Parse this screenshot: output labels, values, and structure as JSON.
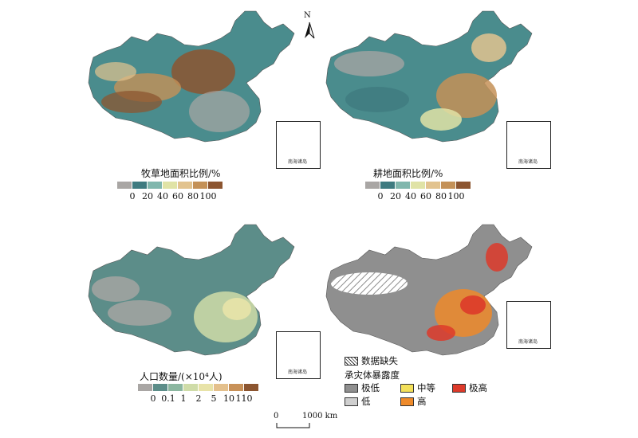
{
  "north_arrow": {
    "label": "N"
  },
  "inset": {
    "label": "南海诸岛"
  },
  "panels": [
    {
      "key": "grassland",
      "title": "牧草地面积比例/%",
      "ticks": [
        "0",
        "20",
        "40",
        "60",
        "80",
        "100"
      ],
      "colors": [
        "#a9a6a4",
        "#3e7b80",
        "#80b7ad",
        "#e0e3a6",
        "#e2c38f",
        "#c49157",
        "#8c5530"
      ]
    },
    {
      "key": "cropland",
      "title": "耕地面积比例/%",
      "ticks": [
        "0",
        "20",
        "40",
        "60",
        "80",
        "100"
      ],
      "colors": [
        "#a9a6a4",
        "#3e7b80",
        "#80b7ad",
        "#e0e3a6",
        "#e2c38f",
        "#c49157",
        "#8c5530"
      ]
    },
    {
      "key": "population",
      "title": "人口数量/(×10⁴人)",
      "ticks": [
        "0",
        "0.1",
        "1",
        "2",
        "5",
        "10",
        "110"
      ],
      "colors": [
        "#a9a6a4",
        "#5c8d89",
        "#8cb7a0",
        "#cfdca8",
        "#e8e3a8",
        "#e4c08c",
        "#c89158",
        "#8c5530"
      ]
    }
  ],
  "exposure": {
    "missing_label": "数据缺失",
    "title": "承灾体暴露度",
    "classes": [
      {
        "label": "极低",
        "color": "#8f8f8f"
      },
      {
        "label": "低",
        "color": "#cfcfcf"
      },
      {
        "label": "中等",
        "color": "#f3e05a"
      },
      {
        "label": "高",
        "color": "#ee8a2a"
      },
      {
        "label": "极高",
        "color": "#dd3a2a"
      }
    ]
  },
  "scale_bar": {
    "start": "0",
    "end": "1000 km"
  }
}
